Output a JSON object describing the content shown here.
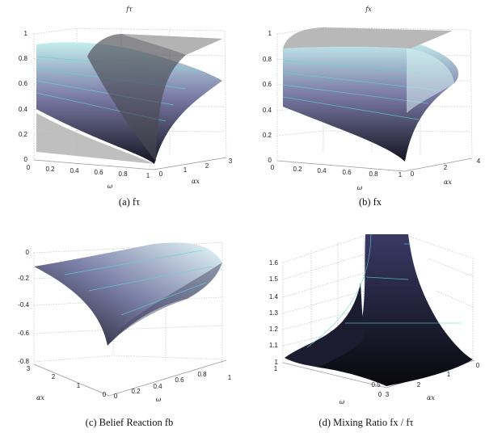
{
  "panels": [
    {
      "caption": "(a) fτ",
      "zlabel": "fτ",
      "xlabel": "ω",
      "ylabel": "αx",
      "zticks": [
        "0",
        "0.2",
        "0.4",
        "0.6",
        "0.8",
        "1"
      ],
      "xticks": [
        "0",
        "0.2",
        "0.4",
        "0.6",
        "0.8",
        "1"
      ],
      "yticks": [
        "0",
        "1",
        "2",
        "3"
      ]
    },
    {
      "caption": "(b) fx",
      "zlabel": "fx",
      "xlabel": "ω",
      "ylabel": "αx",
      "zticks": [
        "0",
        "0.2",
        "0.4",
        "0.6",
        "0.8",
        "1"
      ],
      "xticks": [
        "0",
        "0.2",
        "0.4",
        "0.6",
        "0.8",
        "1"
      ],
      "yticks": [
        "0",
        "2",
        "4"
      ]
    },
    {
      "caption": "(c) Belief Reaction fb",
      "xlabel": "ω",
      "ylabel": "αx",
      "zticks": [
        "0",
        "-0.2",
        "-0.4",
        "-0.6",
        "-0.8"
      ],
      "xticks": [
        "0",
        "0.2",
        "0.4",
        "0.6",
        "0.8",
        "1"
      ],
      "yticks": [
        "3",
        "2",
        "1",
        "0"
      ]
    },
    {
      "caption": "(d) Mixing Ratio fx / fτ",
      "xlabel": "ω",
      "ylabel": "αx",
      "zticks": [
        "1.6",
        "1.5",
        "1.4",
        "1.3",
        "1.2",
        "1.1",
        "1"
      ],
      "xticks": [
        "1",
        "0.5",
        "0"
      ],
      "yticks": [
        "3",
        "2",
        "1",
        "0"
      ]
    }
  ],
  "chart_data": [
    {
      "type": "surface",
      "title": "(a) fτ",
      "xlabel": "ω",
      "ylabel": "αx",
      "zlabel": "fτ",
      "xlim": [
        0,
        1
      ],
      "ylim": [
        0,
        3
      ],
      "zlim": [
        0,
        1
      ],
      "grid": true
    },
    {
      "type": "surface",
      "title": "(b) fx",
      "xlabel": "ω",
      "ylabel": "αx",
      "zlabel": "fx",
      "xlim": [
        0,
        1
      ],
      "ylim": [
        0,
        4
      ],
      "zlim": [
        0,
        1
      ],
      "grid": true
    },
    {
      "type": "surface",
      "title": "(c) Belief Reaction fb",
      "xlabel": "ω",
      "ylabel": "αx",
      "xlim": [
        0,
        1
      ],
      "ylim": [
        0,
        3
      ],
      "zlim": [
        -0.8,
        0
      ],
      "grid": true
    },
    {
      "type": "surface",
      "title": "(d) Mixing Ratio fx / fτ",
      "xlabel": "ω",
      "ylabel": "αx",
      "xlim": [
        0,
        1
      ],
      "ylim": [
        0,
        3
      ],
      "zlim": [
        1,
        1.65
      ],
      "grid": true
    }
  ],
  "colors": {
    "surface_top": "#c4eeee",
    "surface_mid": "#7a7aa6",
    "surface_low": "#141420",
    "plane": "#b4b4b4",
    "contour": "#5fd6d6"
  }
}
